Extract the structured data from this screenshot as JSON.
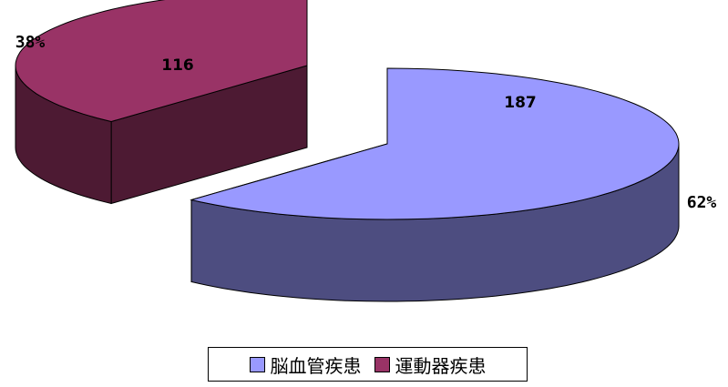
{
  "chart_data": {
    "type": "pie",
    "style": "3d-exploded",
    "categories": [
      "脳血管疾患",
      "運動器疾患"
    ],
    "values": [
      187,
      116
    ],
    "percent_labels": [
      "62%",
      "38%"
    ],
    "colors": {
      "top": [
        "#9999FF",
        "#993366"
      ],
      "side": [
        "#4D4D80",
        "#4D1A33"
      ]
    },
    "legend_position": "bottom"
  }
}
